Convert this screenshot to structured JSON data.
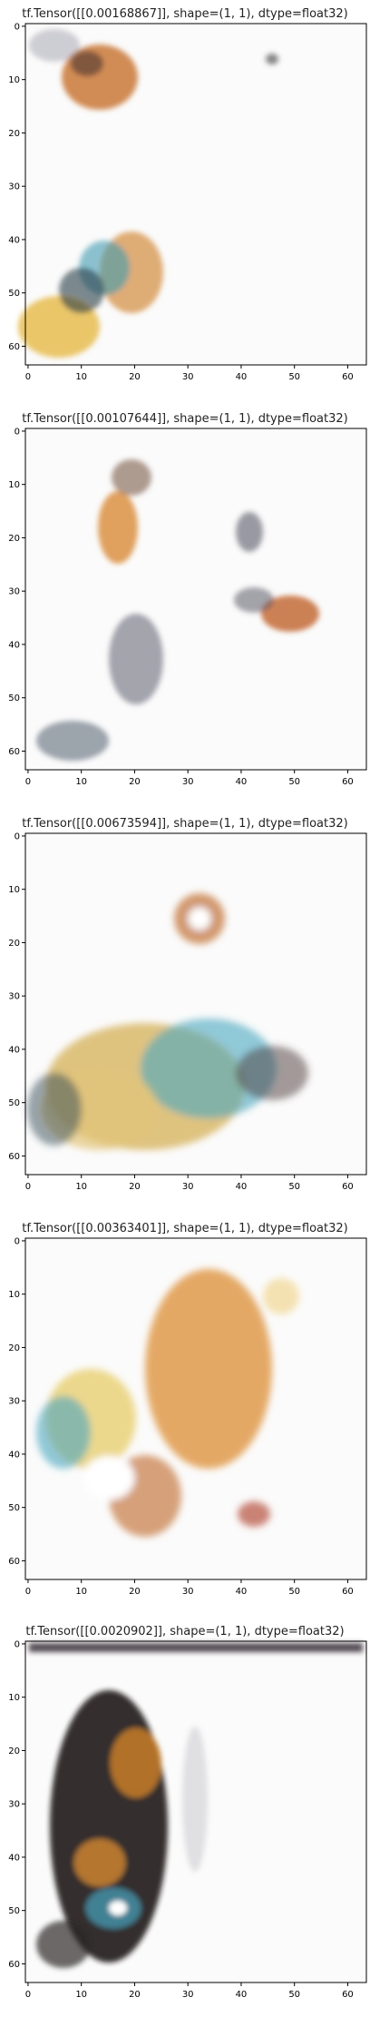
{
  "figure": {
    "panels": [
      {
        "title": "tf.Tensor([[0.00168867]], shape=(1, 1), dtype=float32)",
        "xticks": [
          "0",
          "10",
          "20",
          "30",
          "40",
          "50",
          "60"
        ],
        "yticks": [
          "0",
          "10",
          "20",
          "30",
          "40",
          "50",
          "60"
        ],
        "content": "orange/brown and blue smudge blobs, top-left and bottom-left"
      },
      {
        "title": "tf.Tensor([[0.00107644]], shape=(1, 1), dtype=float32)",
        "xticks": [
          "0",
          "10",
          "20",
          "30",
          "40",
          "50",
          "60"
        ],
        "yticks": [
          "0",
          "10",
          "20",
          "30",
          "40",
          "50",
          "60"
        ],
        "content": "scattered orange and gray smudges center"
      },
      {
        "title": "tf.Tensor([[0.00673594]], shape=(1, 1), dtype=float32)",
        "xticks": [
          "0",
          "10",
          "20",
          "30",
          "40",
          "50",
          "60"
        ],
        "yticks": [
          "0",
          "10",
          "20",
          "30",
          "40",
          "50",
          "60"
        ],
        "content": "large cyan/yellow blob with ring near top"
      },
      {
        "title": "tf.Tensor([[0.00363401]], shape=(1, 1), dtype=float32)",
        "xticks": [
          "0",
          "10",
          "20",
          "30",
          "40",
          "50",
          "60"
        ],
        "yticks": [
          "0",
          "10",
          "20",
          "30",
          "40",
          "50",
          "60"
        ],
        "content": "large orange blob with cyan/yellow region on left"
      },
      {
        "title": "tf.Tensor([[0.0020902]], shape=(1, 1), dtype=float32)",
        "xticks": [
          "0",
          "10",
          "20",
          "30",
          "40",
          "50",
          "60"
        ],
        "yticks": [
          "0",
          "10",
          "20",
          "30",
          "40",
          "50",
          "60"
        ],
        "content": "dark vertical blob with orange and cyan patches"
      }
    ]
  }
}
